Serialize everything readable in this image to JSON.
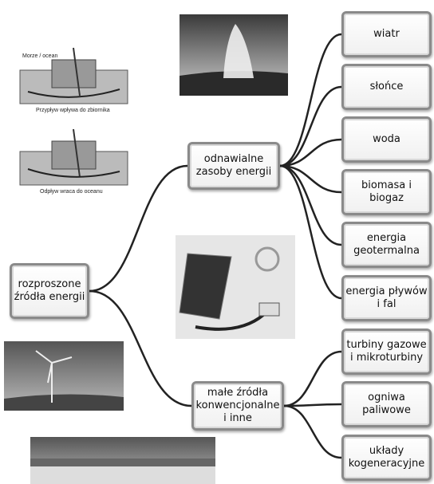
{
  "root": {
    "label": "rozproszone źródła energii"
  },
  "branches": [
    {
      "label": "odnawialne zasoby energii",
      "children": [
        "wiatr",
        "słońce",
        "woda",
        "biomasa i biogaz",
        "energia geotermalna",
        "energia pływów i fal"
      ]
    },
    {
      "label": "małe źródła konwencjonalne i inne",
      "children": [
        "turbiny gazowe i mikroturbiny",
        "ogniwa paliwowe",
        "układy kogeneracyjne"
      ]
    }
  ],
  "tidal_diagram": {
    "sea_label": "Morze / ocean",
    "inflow_caption": "Przypływ wpływa do zbiornika",
    "outflow_caption": "Odpływ wraca do oceanu"
  }
}
